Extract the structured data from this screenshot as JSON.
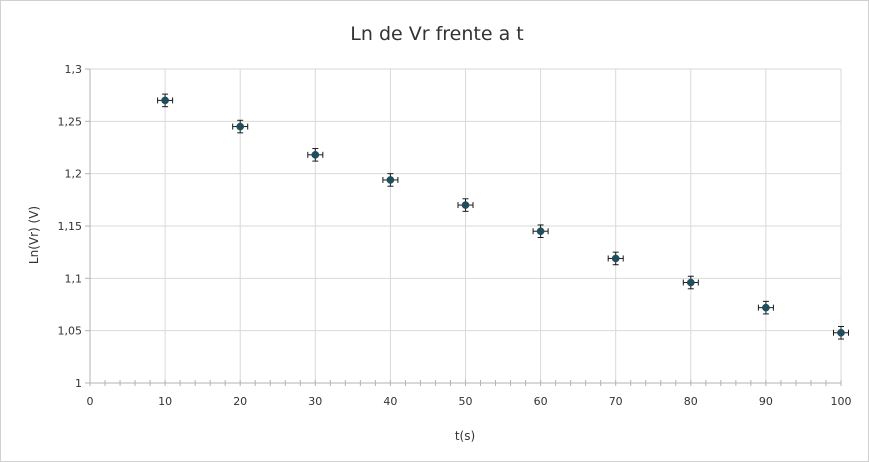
{
  "chart_data": {
    "type": "scatter",
    "title": "Ln de Vr frente a t",
    "xlabel": "t(s)",
    "ylabel": "Ln(Vr) (V)",
    "xlim": [
      0,
      100
    ],
    "ylim": [
      1,
      1.3
    ],
    "x_ticks": [
      0,
      10,
      20,
      30,
      40,
      50,
      60,
      70,
      80,
      90,
      100
    ],
    "x_tick_labels": [
      "0",
      "10",
      "20",
      "30",
      "40",
      "50",
      "60",
      "70",
      "80",
      "90",
      "100"
    ],
    "y_ticks": [
      1,
      1.05,
      1.1,
      1.15,
      1.2,
      1.25,
      1.3
    ],
    "y_tick_labels": [
      "1",
      "1,05",
      "1,1",
      "1,15",
      "1,2",
      "1,25",
      "1,3"
    ],
    "x_minor_step": 2,
    "grid": true,
    "legend": "none",
    "error_bars": {
      "x": 1,
      "y": 0.006
    },
    "series": [
      {
        "color": "#1f4e5c",
        "x": [
          10,
          20,
          30,
          40,
          50,
          60,
          70,
          80,
          90,
          100
        ],
        "y": [
          1.27,
          1.245,
          1.218,
          1.194,
          1.17,
          1.145,
          1.119,
          1.096,
          1.072,
          1.048
        ]
      }
    ]
  }
}
